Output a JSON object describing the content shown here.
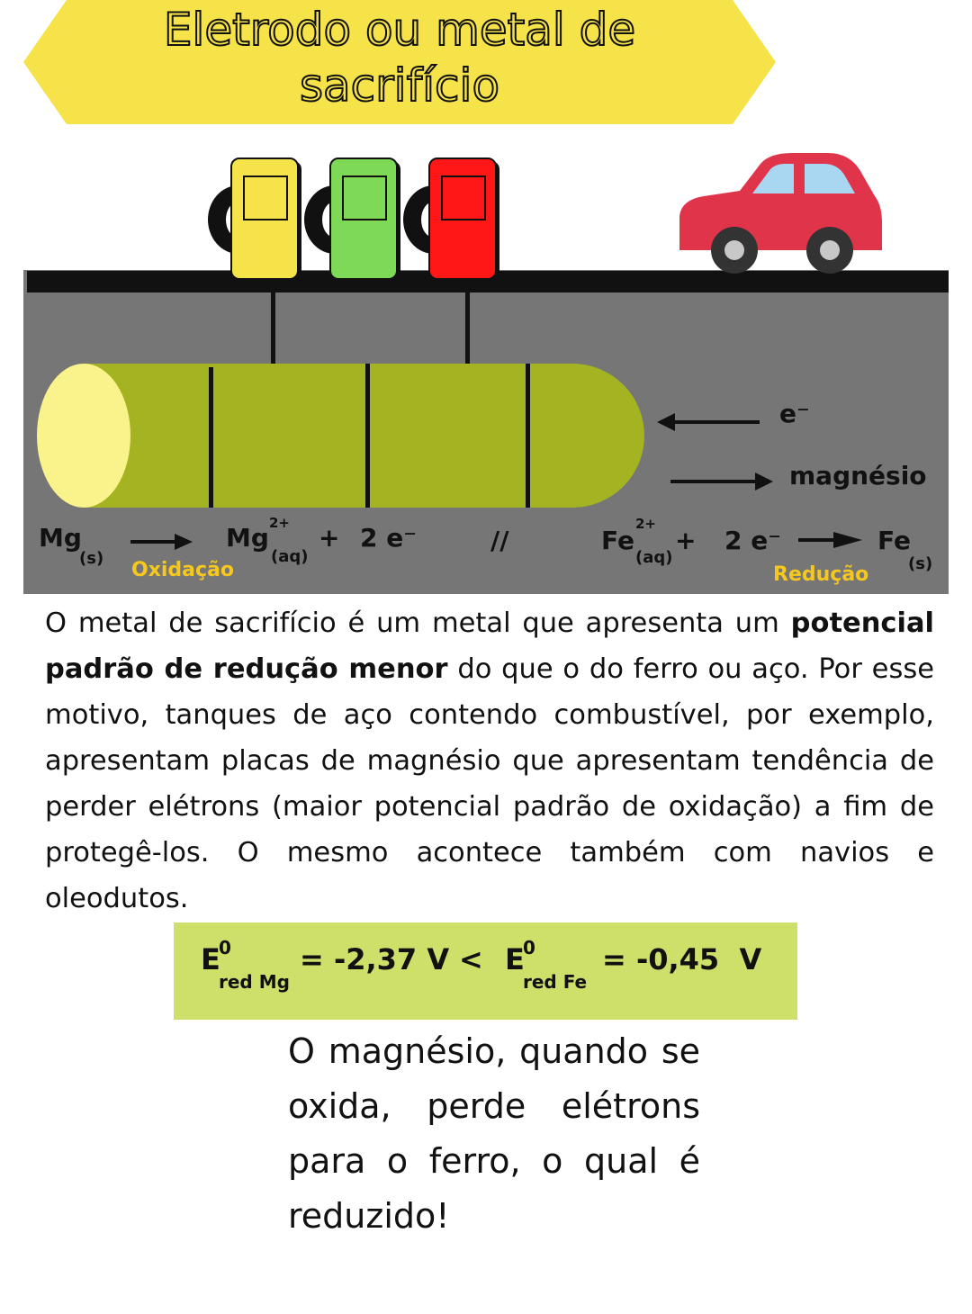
{
  "title": {
    "line1": "Eletrodo ou metal de",
    "line2": "sacrifício"
  },
  "colors": {
    "banner": "#f6e34a",
    "ground": "#767676",
    "road": "#111111",
    "pipe": "#a4b322",
    "pipe_end": "#faf28a",
    "tank_yellow": "#f6e34a",
    "tank_green": "#7ed957",
    "tank_red": "#ff1616",
    "car": "#e0344a",
    "label_yellow": "#f6c81e",
    "formula_bg": "#cfe06a"
  },
  "diagram": {
    "electron_label": "e⁻",
    "magnesium_label": "magnésio",
    "oxidation": {
      "reactant": "Mg",
      "reactant_state": "(s)",
      "product": "Mg",
      "product_charge": "2+",
      "product_state": "(aq)",
      "plus": "+",
      "electrons": "2 e⁻",
      "label": "Oxidação"
    },
    "separator": "//",
    "reduction": {
      "reactant": "Fe",
      "reactant_charge": "2+",
      "reactant_state": "(aq)",
      "plus": "+",
      "electrons": "2 e⁻",
      "product": "Fe",
      "product_state": "(s)",
      "label": "Redução"
    }
  },
  "paragraph": {
    "part1": "O metal de sacrifício é um metal que apresenta um ",
    "bold": "potencial padrão de redução menor",
    "part2": " do que o do ferro ou aço. Por esse motivo, tanques de aço contendo combustível, por exemplo, apresentam placas de magnésio que apresentam tendência de perder elétrons (maior potencial padrão de oxidação) a fim de protegê-los. O mesmo acontece também com navios e oleodutos."
  },
  "formula": {
    "mg": {
      "symbol": "E",
      "sup": "0",
      "sub": "red Mg",
      "value": "= -2,37 V"
    },
    "comparison": "<",
    "fe": {
      "symbol": "E",
      "sup": "0",
      "sub": "red Fe",
      "value": "= -0,45  V"
    }
  },
  "conclusion": "O magnésio, quando se oxida, perde elétrons para o ferro, o qual é reduzido!"
}
